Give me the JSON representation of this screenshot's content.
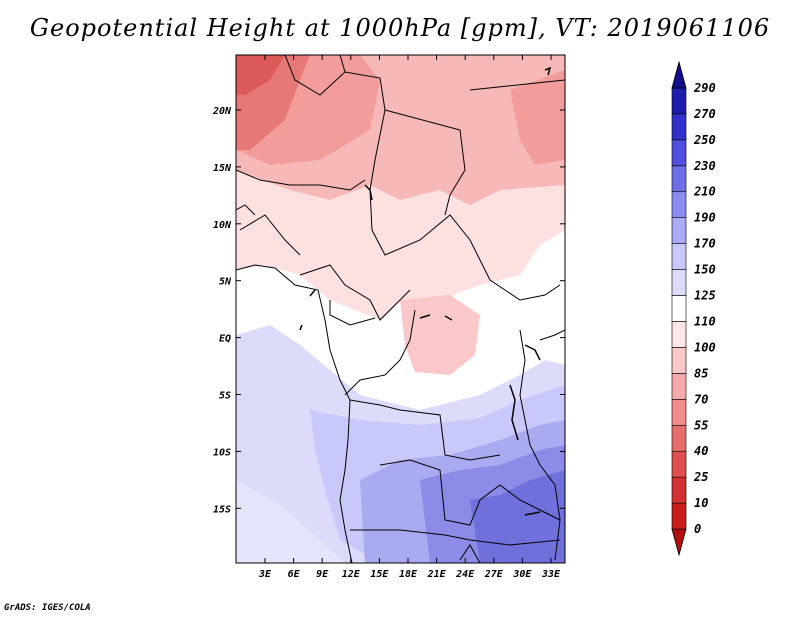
{
  "title": "Geopotential Height at 1000hPa [gpm], VT: 2019061106",
  "credit": "GrADS: IGES/COLA",
  "map": {
    "lat_ticks": [
      "20N",
      "15N",
      "10N",
      "5N",
      "EQ",
      "5S",
      "10S",
      "15S"
    ],
    "lon_ticks": [
      "3E",
      "6E",
      "9E",
      "12E",
      "15E",
      "18E",
      "21E",
      "24E",
      "27E",
      "30E",
      "33E"
    ]
  },
  "colorbar": {
    "levels": [
      "0",
      "10",
      "25",
      "40",
      "55",
      "70",
      "85",
      "100",
      "110",
      "125",
      "150",
      "170",
      "190",
      "210",
      "230",
      "250",
      "270",
      "290"
    ],
    "colors": [
      "#b40f0f",
      "#c81e1e",
      "#d23232",
      "#dc5050",
      "#e66e6e",
      "#f08c8c",
      "#f5aaaa",
      "#fac8c8",
      "#ffe6e6",
      "#ffffff",
      "#dcdcfa",
      "#c8c8fa",
      "#aaaaf5",
      "#8c8cf0",
      "#6e6ee6",
      "#5050dc",
      "#3232c8",
      "#1e1eaa",
      "#0f0f8c"
    ]
  }
}
